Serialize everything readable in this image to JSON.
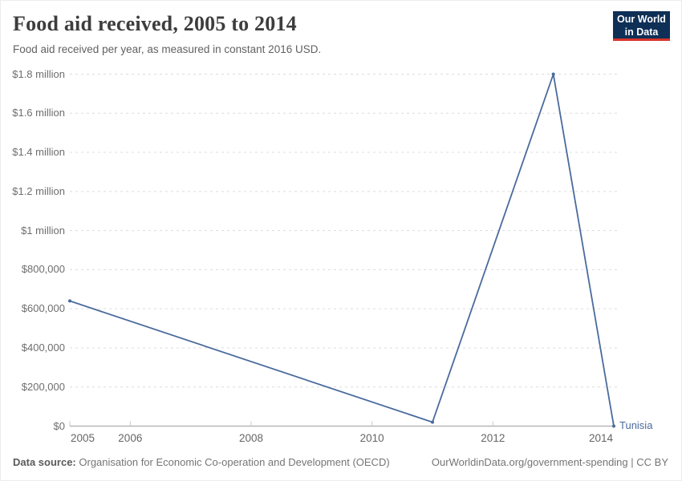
{
  "header": {
    "title": "Food aid received, 2005 to 2014",
    "subtitle": "Food aid received per year, as measured in constant 2016 USD.",
    "logo": {
      "line1": "Our World",
      "line2": "in Data"
    }
  },
  "chart_data": {
    "type": "line",
    "title": "Food aid received, 2005 to 2014",
    "xlabel": "",
    "ylabel": "",
    "xlim": [
      2005,
      2014
    ],
    "ylim": [
      0,
      1800000
    ],
    "grid": "horizontal-dashed",
    "legend_position": "end-of-line-label",
    "x_ticks": [
      2005,
      2006,
      2008,
      2010,
      2012,
      2014
    ],
    "x_tick_labels": [
      "2005",
      "2006",
      "2008",
      "2010",
      "2012",
      "2014"
    ],
    "y_ticks": [
      {
        "value": 0,
        "label": "$0"
      },
      {
        "value": 200000,
        "label": "$200,000"
      },
      {
        "value": 400000,
        "label": "$400,000"
      },
      {
        "value": 600000,
        "label": "$600,000"
      },
      {
        "value": 800000,
        "label": "$800,000"
      },
      {
        "value": 1000000,
        "label": "$1 million"
      },
      {
        "value": 1200000,
        "label": "$1.2 million"
      },
      {
        "value": 1400000,
        "label": "$1.4 million"
      },
      {
        "value": 1600000,
        "label": "$1.6 million"
      },
      {
        "value": 1800000,
        "label": "$1.8 million"
      }
    ],
    "series": [
      {
        "name": "Tunisia",
        "color": "#4a6b9d",
        "points": [
          {
            "x": 2005,
            "y": 640000
          },
          {
            "x": 2011,
            "y": 20000
          },
          {
            "x": 2013,
            "y": 1800000
          },
          {
            "x": 2014,
            "y": 0
          }
        ]
      }
    ]
  },
  "footer": {
    "source_label": "Data source:",
    "source_text": "Organisation for Economic Co-operation and Development (OECD)",
    "link": "OurWorldinData.org/government-spending",
    "separator": " | ",
    "license": "CC BY"
  },
  "colors": {
    "line": "#4a6b9d",
    "entity_label": "#4a6b9d",
    "logo_bg": "#0e2f56",
    "logo_accent": "#d7342b",
    "grid": "#dcdcdc",
    "axis": "#9e9e9e",
    "tick": "#c8c8c8"
  }
}
